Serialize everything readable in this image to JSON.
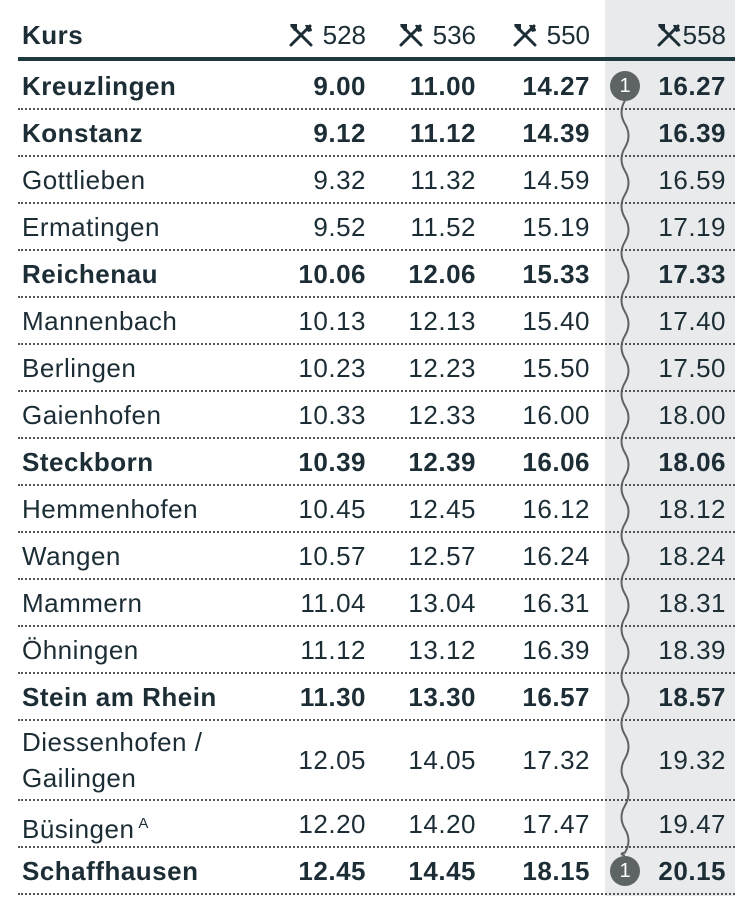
{
  "table": {
    "header": {
      "label": "Kurs",
      "courses": [
        "528",
        "536",
        "550",
        "558"
      ]
    },
    "rows": [
      {
        "station": "Kreuzlingen",
        "bold": true,
        "times": [
          "9.00",
          "11.00",
          "14.27",
          "16.27"
        ],
        "badge": "1"
      },
      {
        "station": "Konstanz",
        "bold": true,
        "times": [
          "9.12",
          "11.12",
          "14.39",
          "16.39"
        ]
      },
      {
        "station": "Gottlieben",
        "bold": false,
        "times": [
          "9.32",
          "11.32",
          "14.59",
          "16.59"
        ]
      },
      {
        "station": "Ermatingen",
        "bold": false,
        "times": [
          "9.52",
          "11.52",
          "15.19",
          "17.19"
        ]
      },
      {
        "station": "Reichenau",
        "bold": true,
        "times": [
          "10.06",
          "12.06",
          "15.33",
          "17.33"
        ]
      },
      {
        "station": "Mannenbach",
        "bold": false,
        "times": [
          "10.13",
          "12.13",
          "15.40",
          "17.40"
        ]
      },
      {
        "station": "Berlingen",
        "bold": false,
        "times": [
          "10.23",
          "12.23",
          "15.50",
          "17.50"
        ]
      },
      {
        "station": "Gaienhofen",
        "bold": false,
        "times": [
          "10.33",
          "12.33",
          "16.00",
          "18.00"
        ]
      },
      {
        "station": "Steckborn",
        "bold": true,
        "times": [
          "10.39",
          "12.39",
          "16.06",
          "18.06"
        ]
      },
      {
        "station": "Hemmenhofen",
        "bold": false,
        "times": [
          "10.45",
          "12.45",
          "16.12",
          "18.12"
        ]
      },
      {
        "station": "Wangen",
        "bold": false,
        "times": [
          "10.57",
          "12.57",
          "16.24",
          "18.24"
        ]
      },
      {
        "station": "Mammern",
        "bold": false,
        "times": [
          "11.04",
          "13.04",
          "16.31",
          "18.31"
        ]
      },
      {
        "station": "Öhningen",
        "bold": false,
        "times": [
          "11.12",
          "13.12",
          "16.39",
          "18.39"
        ]
      },
      {
        "station": "Stein am Rhein",
        "bold": true,
        "times": [
          "11.30",
          "13.30",
          "16.57",
          "18.57"
        ]
      },
      {
        "station": "Diessenhofen / Gailingen",
        "bold": false,
        "times": [
          "12.05",
          "14.05",
          "17.32",
          "19.32"
        ]
      },
      {
        "station": "Büsingen",
        "note": "A",
        "bold": false,
        "times": [
          "12.20",
          "14.20",
          "17.47",
          "19.47"
        ]
      },
      {
        "station": "Schaffhausen",
        "bold": true,
        "times": [
          "12.45",
          "14.45",
          "18.15",
          "20.15"
        ],
        "badge": "1"
      }
    ]
  }
}
